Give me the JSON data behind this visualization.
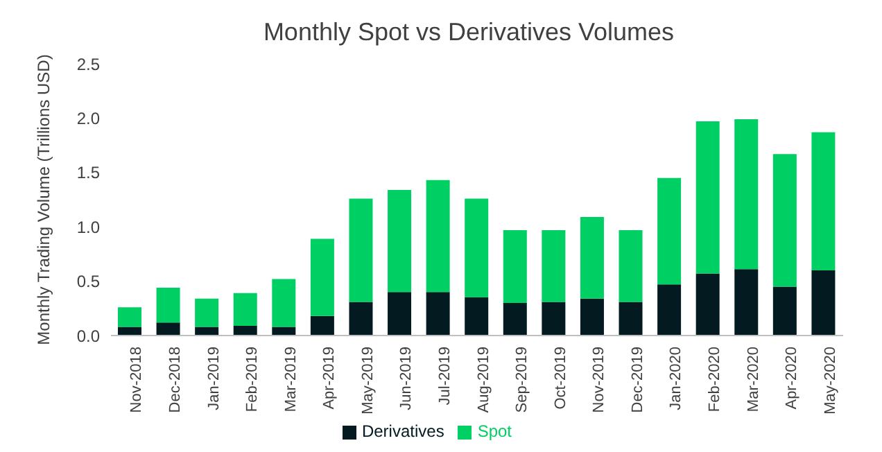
{
  "chart_data": {
    "type": "bar",
    "title": "Monthly Spot vs Derivatives Volumes",
    "ylabel": "Monthly Trading Volume (Trillions USD)",
    "categories": [
      "Nov-2018",
      "Dec-2018",
      "Jan-2019",
      "Feb-2019",
      "Mar-2019",
      "Apr-2019",
      "May-2019",
      "Jun-2019",
      "Jul-2019",
      "Aug-2019",
      "Sep-2019",
      "Oct-2019",
      "Nov-2019",
      "Dec-2019",
      "Jan-2020",
      "Feb-2020",
      "Mar-2020",
      "Apr-2020",
      "May-2020"
    ],
    "stacked": true,
    "series": [
      {
        "name": "Derivatives",
        "color": "#021a20",
        "values": [
          0.08,
          0.12,
          0.08,
          0.09,
          0.08,
          0.18,
          0.31,
          0.4,
          0.4,
          0.35,
          0.3,
          0.31,
          0.34,
          0.31,
          0.47,
          0.57,
          0.61,
          0.45,
          0.6
        ]
      },
      {
        "name": "Spot",
        "color": "#00d064",
        "values": [
          0.18,
          0.32,
          0.26,
          0.3,
          0.44,
          0.71,
          0.95,
          0.94,
          1.03,
          0.91,
          0.67,
          0.66,
          0.75,
          0.66,
          0.98,
          1.4,
          1.38,
          1.22,
          1.27
        ]
      }
    ],
    "ylim": [
      0,
      2.5
    ],
    "yticks": [
      {
        "value": 0,
        "label": "0.0"
      },
      {
        "value": 0.5,
        "label": "0.5"
      },
      {
        "value": 1,
        "label": "1.0"
      },
      {
        "value": 1.5,
        "label": "1.5"
      },
      {
        "value": 2,
        "label": "2.0"
      },
      {
        "value": 2.5,
        "label": "2.5"
      }
    ],
    "grid": false,
    "legend": "bottom"
  }
}
